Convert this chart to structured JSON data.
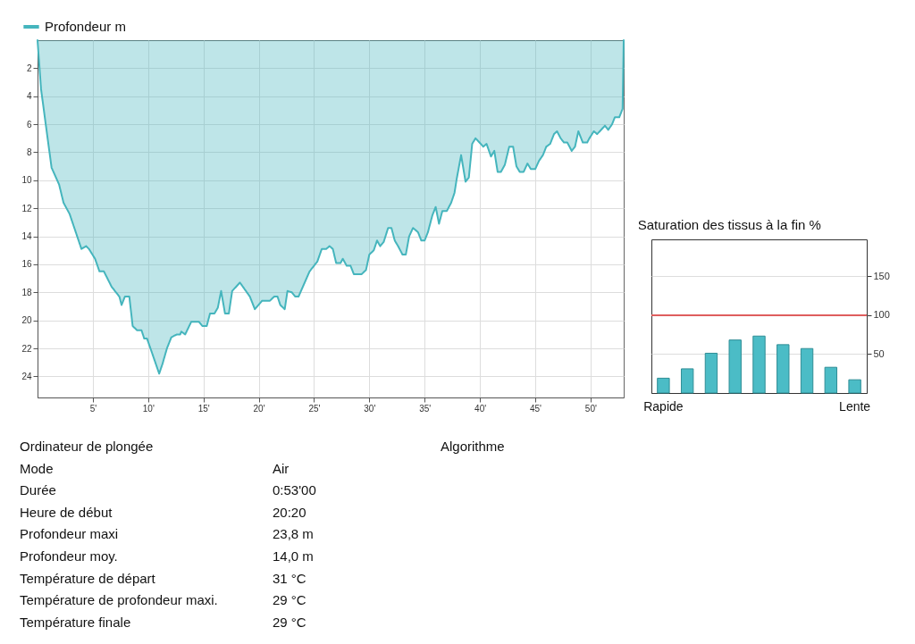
{
  "chart_data": [
    {
      "type": "area",
      "legend": "top left",
      "grid": true,
      "xlim": [
        0,
        53
      ],
      "ylim": [
        25.5,
        0
      ],
      "xticks": [
        {
          "value": 5,
          "label": "5'"
        },
        {
          "value": 10,
          "label": "10'"
        },
        {
          "value": 15,
          "label": "15'"
        },
        {
          "value": 20,
          "label": "20'"
        },
        {
          "value": 25,
          "label": "25'"
        },
        {
          "value": 30,
          "label": "30'"
        },
        {
          "value": 35,
          "label": "35'"
        },
        {
          "value": 40,
          "label": "40'"
        },
        {
          "value": 45,
          "label": "45'"
        },
        {
          "value": 50,
          "label": "50'"
        }
      ],
      "yticks": [
        2,
        4,
        6,
        8,
        10,
        12,
        14,
        16,
        18,
        20,
        22,
        24
      ],
      "x": [
        0,
        0.32,
        0.86,
        1.27,
        1.95,
        2.35,
        2.9,
        3.97,
        4.4,
        4.65,
        5.2,
        5.6,
        6.0,
        6.7,
        7.4,
        7.6,
        7.9,
        8.3,
        8.6,
        9.0,
        9.4,
        9.65,
        9.9,
        10.3,
        11.0,
        11.3,
        11.7,
        12.1,
        12.6,
        12.9,
        13.0,
        13.35,
        13.9,
        14.6,
        14.9,
        15.3,
        15.6,
        16.0,
        16.3,
        16.6,
        16.95,
        17.3,
        17.6,
        18.3,
        19.2,
        19.65,
        20.3,
        21.0,
        21.4,
        21.7,
        21.95,
        22.35,
        22.6,
        23.0,
        23.3,
        23.6,
        24.6,
        25.3,
        25.7,
        26.1,
        26.4,
        26.7,
        27.0,
        27.4,
        27.6,
        27.95,
        28.3,
        28.6,
        29.3,
        29.7,
        30.0,
        30.4,
        30.7,
        30.98,
        31.3,
        31.7,
        32.0,
        32.3,
        32.6,
        33.0,
        33.3,
        33.6,
        33.95,
        34.4,
        34.7,
        35.0,
        35.3,
        35.7,
        36.0,
        36.3,
        36.6,
        37.0,
        37.4,
        37.7,
        37.9,
        38.3,
        38.7,
        39.0,
        39.3,
        39.6,
        39.96,
        40.3,
        40.6,
        41.0,
        41.3,
        41.6,
        41.9,
        42.25,
        42.65,
        43.0,
        43.3,
        43.6,
        43.95,
        44.3,
        44.6,
        45.0,
        45.35,
        45.7,
        46.0,
        46.35,
        46.7,
        46.97,
        47.3,
        47.6,
        47.9,
        48.3,
        48.6,
        48.9,
        49.3,
        49.7,
        49.9,
        50.3,
        50.6,
        50.96,
        51.3,
        51.6,
        51.95,
        52.2,
        52.6,
        52.9,
        53.0
      ],
      "series": [
        {
          "name": "Profondeur m",
          "color": "#45b5bd",
          "values": [
            0,
            3.5,
            6.7,
            9.1,
            10.3,
            11.6,
            12.4,
            14.9,
            14.7,
            14.9,
            15.6,
            16.5,
            16.5,
            17.6,
            18.3,
            18.9,
            18.3,
            18.3,
            20.4,
            20.7,
            20.7,
            21.3,
            21.3,
            22.2,
            23.8,
            23.1,
            22.0,
            21.2,
            21.0,
            21.0,
            20.8,
            21.0,
            20.1,
            20.1,
            20.4,
            20.4,
            19.5,
            19.5,
            19.1,
            17.9,
            19.5,
            19.5,
            17.9,
            17.3,
            18.3,
            19.2,
            18.6,
            18.6,
            18.3,
            18.3,
            18.9,
            19.2,
            17.9,
            18.0,
            18.3,
            18.3,
            16.5,
            15.8,
            14.9,
            14.9,
            14.7,
            14.9,
            15.9,
            15.9,
            15.6,
            16.1,
            16.1,
            16.7,
            16.7,
            16.4,
            15.3,
            15.0,
            14.3,
            14.7,
            14.4,
            13.4,
            13.4,
            14.3,
            14.7,
            15.3,
            15.3,
            14.0,
            13.4,
            13.7,
            14.3,
            14.3,
            13.7,
            12.5,
            11.9,
            13.1,
            12.2,
            12.2,
            11.6,
            10.9,
            9.9,
            8.2,
            10.1,
            9.8,
            7.4,
            7.0,
            7.3,
            7.6,
            7.4,
            8.3,
            7.9,
            9.4,
            9.4,
            8.9,
            7.6,
            7.6,
            9.0,
            9.4,
            9.4,
            8.8,
            9.2,
            9.2,
            8.6,
            8.2,
            7.6,
            7.4,
            6.7,
            6.5,
            7.0,
            7.3,
            7.3,
            7.9,
            7.6,
            6.5,
            7.3,
            7.3,
            7.0,
            6.5,
            6.7,
            6.4,
            6.1,
            6.4,
            6.0,
            5.5,
            5.5,
            4.9,
            0
          ]
        }
      ]
    },
    {
      "type": "bar",
      "title": "Saturation des tissus à la fin %",
      "categories": [
        "Rapide",
        null,
        null,
        null,
        null,
        null,
        null,
        null,
        "Lente"
      ],
      "values": [
        19,
        31,
        51,
        68,
        73,
        62,
        57,
        33,
        17
      ],
      "color": "#4bbcc6",
      "ylim": [
        0,
        197
      ],
      "yticks": [
        50,
        100,
        150
      ],
      "grid": "y",
      "ref_lines": [
        {
          "axis": "y",
          "value": 100,
          "color": "#e05a5a"
        }
      ]
    },
    {
      "type": "other",
      "categories": [
        "Ordinateur de plongée",
        "Algorithme",
        "Mode",
        "Durée",
        "Heure de début",
        "Profondeur maxi",
        "Profondeur moy.",
        "Température de départ",
        "Température de profondeur maxi.",
        "Température finale"
      ],
      "value_labels": [
        null,
        null,
        "Air",
        "0:53'00",
        "20:20",
        "23,8 m",
        "14,0 m",
        "31 °C",
        "29 °C",
        "29 °C"
      ]
    }
  ]
}
